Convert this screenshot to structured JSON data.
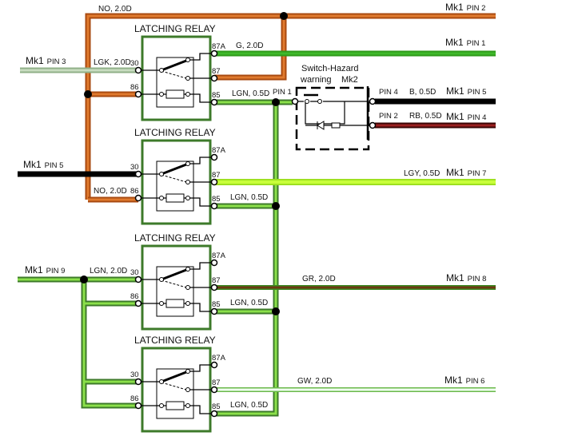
{
  "relays": [
    {
      "title": "LATCHING RELAY",
      "t87a": "87A",
      "t87": "87",
      "t30": "30",
      "t86": "86",
      "t85": "85"
    },
    {
      "title": "LATCHING RELAY",
      "t87a": "87A",
      "t87": "87",
      "t30": "30",
      "t86": "86",
      "t85": "85"
    },
    {
      "title": "LATCHING RELAY",
      "t87a": "87A",
      "t87": "87",
      "t30": "30",
      "t86": "86",
      "t85": "85"
    },
    {
      "title": "LATCHING RELAY",
      "t87a": "87A",
      "t87": "87",
      "t30": "30",
      "t86": "86",
      "t85": "85"
    }
  ],
  "wires": {
    "no_top": "NO, 2.0D",
    "no_bottom": "NO, 2.0D",
    "g": "G, 2.0D",
    "lgk": "LGK, 2.0D",
    "lgn1": "LGN, 0.5D",
    "lgn2": "LGN, 0.5D",
    "lgn3": "LGN, 0.5D",
    "lgn4": "LGN, 0.5D",
    "lgn_in": "LGN, 2.0D",
    "b": "B, 0.5D",
    "rb": "RB, 0.5D",
    "lgy": "LGY, 0.5D",
    "gr": "GR, 2.0D",
    "gw": "GW, 2.0D"
  },
  "connectors": {
    "mk1_pin2": {
      "mk": "Mk1",
      "pin": "PIN 2"
    },
    "mk1_pin1": {
      "mk": "Mk1",
      "pin": "PIN 1"
    },
    "mk1_pin3": {
      "mk": "Mk1",
      "pin": "PIN 3"
    },
    "mk1_pin5a": {
      "mk": "Mk1",
      "pin": "PIN 5"
    },
    "mk1_pin4": {
      "mk": "Mk1",
      "pin": "PIN 4"
    },
    "mk1_pin5b": {
      "mk": "Mk1",
      "pin": "PIN 5"
    },
    "mk1_pin7": {
      "mk": "Mk1",
      "pin": "PIN 7"
    },
    "mk1_pin9": {
      "mk": "Mk1",
      "pin": "PIN 9"
    },
    "mk1_pin8": {
      "mk": "Mk1",
      "pin": "PIN 8"
    },
    "mk1_pin6": {
      "mk": "Mk1",
      "pin": "PIN 6"
    }
  },
  "switch": {
    "title": "Switch-Hazard",
    "subtitle": "warning",
    "connector": "Mk2",
    "pin1": "PIN 1",
    "pin4": "PIN 4",
    "pin2": "PIN 2"
  },
  "colors": {
    "orange": "#c8641e",
    "green": "#2e9a1a",
    "light_green": "#8be04a",
    "black": "#000000",
    "dark_red": "#7a1010",
    "yellow_green": "#c8ff3a",
    "brown": "#6b3a12",
    "relay_border": "#3d7a2a"
  }
}
